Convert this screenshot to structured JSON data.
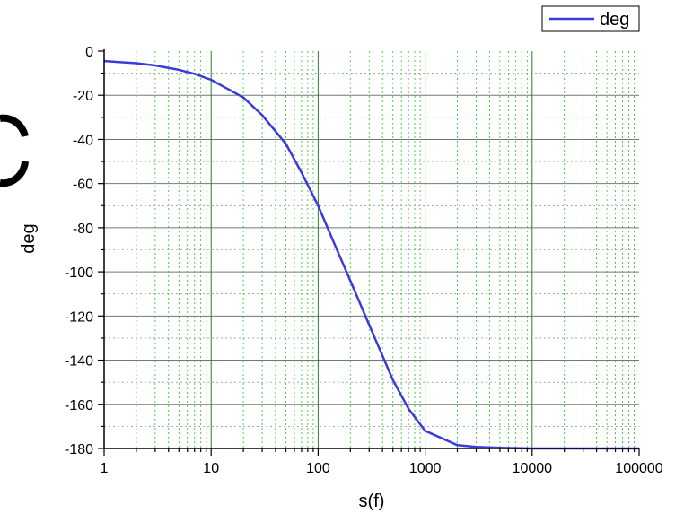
{
  "chart_data": {
    "type": "line",
    "title": "",
    "xlabel": "s(f)",
    "ylabel": "deg",
    "x_scale": "log",
    "xlim": [
      1,
      100000
    ],
    "ylim": [
      -180,
      0
    ],
    "grid": true,
    "legend_position": "top-right",
    "x_ticks": [
      "1",
      "10",
      "100",
      "1000",
      "10000",
      "100000"
    ],
    "y_ticks": [
      "0",
      "-20",
      "-40",
      "-60",
      "-80",
      "-100",
      "-120",
      "-140",
      "-160",
      "-180"
    ],
    "series": [
      {
        "name": "deg",
        "color": "#3b3bdc",
        "x": [
          1,
          2,
          3,
          5,
          7,
          10,
          20,
          30,
          50,
          70,
          100,
          150,
          200,
          300,
          500,
          700,
          1000,
          2000,
          3000,
          5000,
          10000,
          100000
        ],
        "y": [
          -4.5,
          -5.5,
          -6.5,
          -8.5,
          -10.3,
          -13,
          -21,
          -29,
          -42,
          -55,
          -70,
          -90,
          -104,
          -124,
          -149,
          -162,
          -172,
          -178.5,
          -179.3,
          -179.7,
          -180,
          -180
        ]
      }
    ]
  },
  "colors": {
    "line": "#3b3bdc",
    "major_grid_x": "#2e7d2e",
    "minor_grid_x": "#22c322",
    "grid_y": "#777777"
  }
}
